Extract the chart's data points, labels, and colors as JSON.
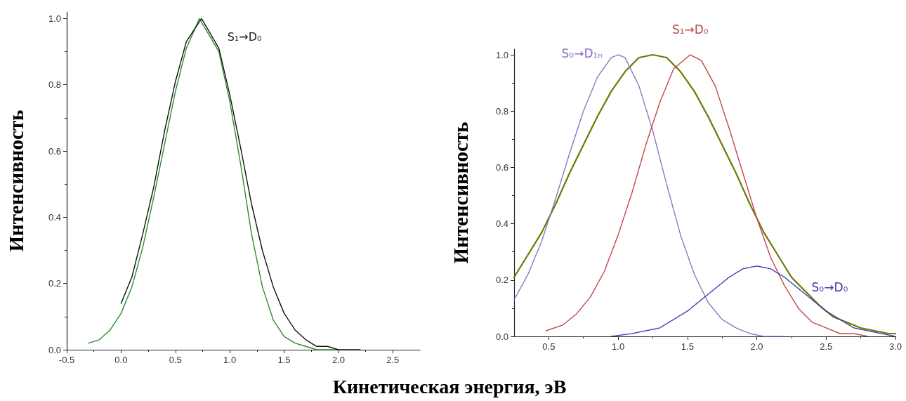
{
  "chart_data": [
    {
      "type": "line",
      "ylabel": "Интенсивность",
      "xlim": [
        -0.5,
        2.75
      ],
      "ylim": [
        0,
        1.02
      ],
      "xticks": [
        {
          "value": -0.5,
          "label": "-0.5"
        },
        {
          "value": 0,
          "label": "0.0"
        },
        {
          "value": 0.5,
          "label": "0.5"
        },
        {
          "value": 1,
          "label": "1.0"
        },
        {
          "value": 1.5,
          "label": "1.5"
        },
        {
          "value": 2,
          "label": "2.0"
        },
        {
          "value": 2.5,
          "label": "2.5"
        }
      ],
      "yticks": [
        {
          "value": 0,
          "label": "0.0"
        },
        {
          "value": 0.2,
          "label": "0.2"
        },
        {
          "value": 0.4,
          "label": "0.4"
        },
        {
          "value": 0.6,
          "label": "0.6"
        },
        {
          "value": 0.8,
          "label": "0.8"
        },
        {
          "value": 1,
          "label": "1.0"
        }
      ],
      "grid": false,
      "marker": "none",
      "annotations": [
        "S₁→D₀"
      ],
      "series": [
        {
          "color": "#2e8b2e",
          "x": [
            -0.3,
            -0.2,
            -0.1,
            0,
            0.1,
            0.2,
            0.3,
            0.4,
            0.5,
            0.6,
            0.72,
            0.9,
            1.0,
            1.1,
            1.2,
            1.3,
            1.4,
            1.5,
            1.6,
            1.7,
            1.8,
            2.0
          ],
          "values": [
            0.02,
            0.03,
            0.06,
            0.11,
            0.19,
            0.31,
            0.46,
            0.62,
            0.78,
            0.91,
            1.0,
            0.9,
            0.75,
            0.56,
            0.35,
            0.19,
            0.09,
            0.04,
            0.02,
            0.01,
            0,
            0
          ]
        },
        {
          "color": "#111111",
          "x": [
            0,
            0.1,
            0.2,
            0.3,
            0.4,
            0.5,
            0.6,
            0.74,
            0.9,
            1.0,
            1.1,
            1.2,
            1.3,
            1.4,
            1.5,
            1.6,
            1.7,
            1.8,
            1.9,
            2.0,
            2.2
          ],
          "values": [
            0.14,
            0.22,
            0.35,
            0.49,
            0.66,
            0.81,
            0.93,
            1.0,
            0.91,
            0.77,
            0.61,
            0.44,
            0.3,
            0.19,
            0.11,
            0.06,
            0.03,
            0.01,
            0.01,
            0,
            0
          ]
        }
      ]
    },
    {
      "type": "line",
      "ylabel": "Интенсивность",
      "xlabel": "Кинетическая энергия, эВ",
      "xlim": [
        0.25,
        3.0
      ],
      "ylim": [
        0,
        1.02
      ],
      "xticks": [
        {
          "value": 0.5,
          "label": "0.5"
        },
        {
          "value": 1,
          "label": "1.0"
        },
        {
          "value": 1.5,
          "label": "1.5"
        },
        {
          "value": 2,
          "label": "2.0"
        },
        {
          "value": 2.5,
          "label": "2.5"
        },
        {
          "value": 3,
          "label": "3.0"
        }
      ],
      "yticks": [
        {
          "value": 0,
          "label": "0.0"
        },
        {
          "value": 0.2,
          "label": "0.2"
        },
        {
          "value": 0.4,
          "label": "0.4"
        },
        {
          "value": 0.6,
          "label": "0.6"
        },
        {
          "value": 0.8,
          "label": "0.8"
        },
        {
          "value": 1,
          "label": "1.0"
        }
      ],
      "grid": false,
      "marker": "none",
      "series": [
        {
          "color": "#6b7a00",
          "x": [
            0.25,
            0.35,
            0.45,
            0.55,
            0.65,
            0.75,
            0.85,
            0.95,
            1.05,
            1.15,
            1.25,
            1.35,
            1.45,
            1.55,
            1.65,
            1.75,
            1.85,
            1.95,
            2.05,
            2.15,
            2.25,
            2.35,
            2.45,
            2.55,
            2.65,
            2.75,
            2.85,
            2.95,
            3.0
          ],
          "values": [
            0.21,
            0.29,
            0.37,
            0.47,
            0.58,
            0.68,
            0.78,
            0.87,
            0.94,
            0.99,
            1.0,
            0.99,
            0.94,
            0.87,
            0.78,
            0.68,
            0.58,
            0.47,
            0.37,
            0.29,
            0.21,
            0.16,
            0.11,
            0.07,
            0.05,
            0.03,
            0.02,
            0.01,
            0.01
          ]
        },
        {
          "name": "S₀→D₁ₙ",
          "color": "#8a6fc0",
          "line_style": "dotted",
          "x": [
            0.25,
            0.35,
            0.45,
            0.55,
            0.65,
            0.75,
            0.85,
            0.95,
            1.0,
            1.05,
            1.15,
            1.25,
            1.35,
            1.45,
            1.55,
            1.65,
            1.75,
            1.85,
            1.95,
            2.05,
            2.2
          ],
          "values": [
            0.13,
            0.22,
            0.34,
            0.49,
            0.65,
            0.8,
            0.92,
            0.99,
            1.0,
            0.99,
            0.89,
            0.73,
            0.54,
            0.36,
            0.22,
            0.12,
            0.06,
            0.03,
            0.01,
            0,
            0
          ]
        },
        {
          "name": "S₁→D₀",
          "color": "#c04848",
          "x": [
            0.48,
            0.6,
            0.7,
            0.8,
            0.9,
            1.0,
            1.1,
            1.2,
            1.3,
            1.4,
            1.52,
            1.6,
            1.7,
            1.8,
            1.9,
            2.0,
            2.1,
            2.2,
            2.3,
            2.4,
            2.5,
            2.6,
            2.7,
            2.8
          ],
          "values": [
            0.02,
            0.04,
            0.08,
            0.14,
            0.23,
            0.36,
            0.51,
            0.68,
            0.83,
            0.95,
            1.0,
            0.98,
            0.89,
            0.74,
            0.58,
            0.42,
            0.28,
            0.18,
            0.1,
            0.05,
            0.03,
            0.01,
            0.01,
            0
          ]
        },
        {
          "name": "S₀→D₀",
          "color": "#3a3ab0",
          "line_style": "dotted",
          "x": [
            0.95,
            1.1,
            1.2,
            1.3,
            1.4,
            1.5,
            1.6,
            1.7,
            1.8,
            1.9,
            2.0,
            2.1,
            2.2,
            2.3,
            2.4,
            2.5,
            2.6,
            2.7,
            2.8,
            2.9,
            3.0
          ],
          "values": [
            0,
            0.01,
            0.02,
            0.03,
            0.06,
            0.09,
            0.13,
            0.17,
            0.21,
            0.24,
            0.25,
            0.24,
            0.21,
            0.17,
            0.13,
            0.09,
            0.06,
            0.03,
            0.02,
            0.01,
            0
          ]
        }
      ]
    }
  ]
}
